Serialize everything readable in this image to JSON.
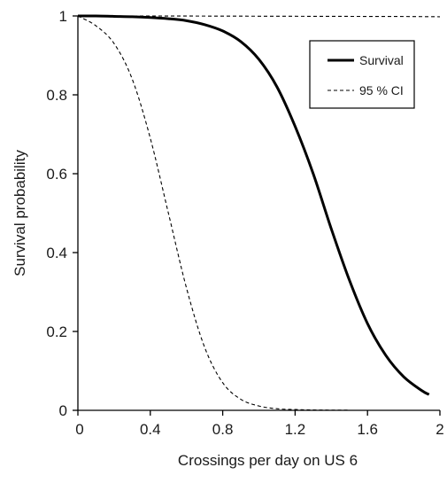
{
  "chart_data": {
    "type": "line",
    "title": "",
    "xlabel": "Crossings per day on US 6",
    "ylabel": "Survival probability",
    "xlim": [
      0,
      2
    ],
    "ylim": [
      0,
      1
    ],
    "xticks": [
      0,
      0.4,
      0.8,
      1.2,
      1.6,
      2
    ],
    "xtick_labels": [
      "0",
      "0.4",
      "0.8",
      "1.2",
      "1.6",
      "2"
    ],
    "yticks": [
      0,
      0.2,
      0.4,
      0.6,
      0.8,
      1
    ],
    "ytick_labels": [
      "0",
      "0.2",
      "0.4",
      "0.6",
      "0.8",
      "1"
    ],
    "grid": false,
    "legend_position": "top-right",
    "series": [
      {
        "name": "Survival",
        "style": "solid",
        "color": "#000000",
        "x": [
          0,
          0.1,
          0.2,
          0.3,
          0.4,
          0.5,
          0.6,
          0.7,
          0.8,
          0.9,
          1.0,
          1.1,
          1.2,
          1.3,
          1.4,
          1.5,
          1.6,
          1.7,
          1.8,
          1.9,
          1.94
        ],
        "y": [
          1.0,
          1.0,
          0.999,
          0.998,
          0.996,
          0.993,
          0.988,
          0.978,
          0.962,
          0.935,
          0.89,
          0.82,
          0.72,
          0.6,
          0.46,
          0.33,
          0.22,
          0.14,
          0.085,
          0.05,
          0.04
        ]
      },
      {
        "name": "95 % CI",
        "style": "dashed",
        "color": "#000000",
        "x": [
          0,
          0.1,
          0.2,
          0.3,
          0.4,
          0.5,
          0.6,
          0.7,
          0.8,
          0.9,
          1.0,
          1.1,
          1.2,
          1.3,
          1.4,
          1.5
        ],
        "y": [
          1.0,
          0.975,
          0.93,
          0.84,
          0.69,
          0.5,
          0.31,
          0.16,
          0.07,
          0.028,
          0.011,
          0.004,
          0.002,
          0.001,
          0.0005,
          0.0003
        ]
      },
      {
        "name": "95 % CI upper",
        "show_in_legend": false,
        "style": "dashed",
        "color": "#000000",
        "x": [
          0,
          0.2,
          0.4,
          0.6,
          0.8,
          1.0,
          1.2,
          1.4,
          1.6,
          1.8,
          2.0
        ],
        "y": [
          1.0,
          1.0,
          1.0,
          0.9998,
          0.9996,
          0.9994,
          0.9992,
          0.999,
          0.9988,
          0.9986,
          0.998
        ]
      }
    ]
  }
}
